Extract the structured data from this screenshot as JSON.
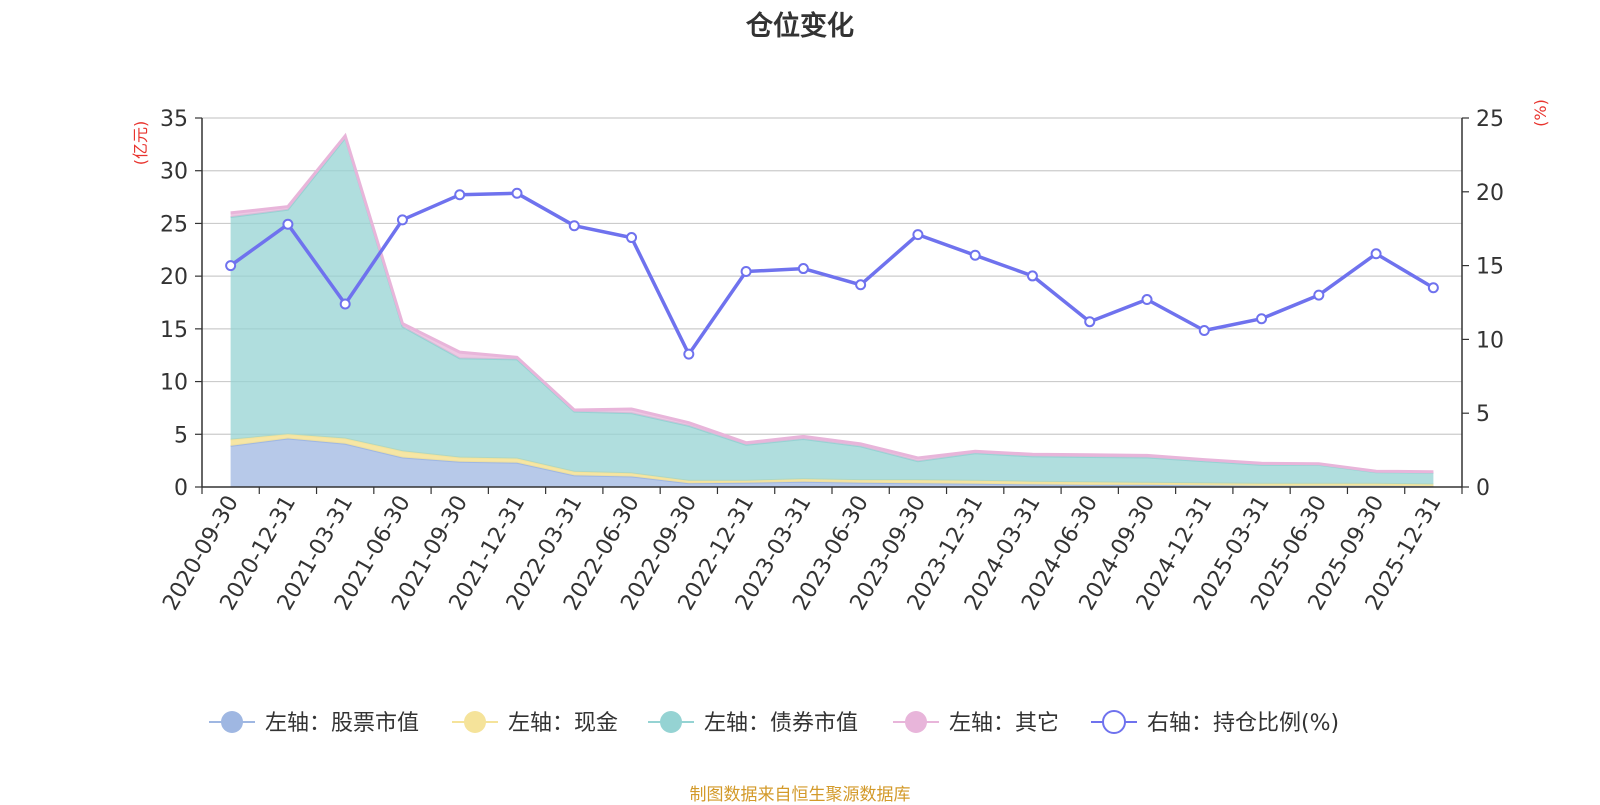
{
  "chart_data": {
    "type": "area",
    "title": "仓位变化",
    "source": "制图数据来自恒生聚源数据库",
    "left_axis_label": "(亿元)",
    "right_axis_label": "(%)",
    "left_ylim": [
      0,
      35
    ],
    "left_ticks": [
      "0",
      "5",
      "10",
      "15",
      "20",
      "25",
      "30",
      "35"
    ],
    "right_ylim": [
      0,
      25
    ],
    "right_ticks": [
      "0",
      "5",
      "10",
      "15",
      "20",
      "25"
    ],
    "grid": true,
    "legend_position": "bottom",
    "categories": [
      "2020-09-30",
      "2020-12-31",
      "2021-03-31",
      "2021-06-30",
      "2021-09-30",
      "2021-12-31",
      "2022-03-31",
      "2022-06-30",
      "2022-09-30",
      "2022-12-31",
      "2023-03-31",
      "2023-06-30",
      "2023-09-30",
      "2023-12-31",
      "2024-03-31",
      "2024-06-30",
      "2024-09-30",
      "2024-12-31",
      "2025-03-31",
      "2025-06-30",
      "2025-09-30",
      "2025-12-31"
    ],
    "series": [
      {
        "name": "左轴：股票市值",
        "axis": "left",
        "kind": "stacked-area",
        "color": "#9fb7e2",
        "values": [
          3.9,
          4.6,
          4.1,
          2.8,
          2.4,
          2.3,
          1.1,
          1.0,
          0.35,
          0.4,
          0.5,
          0.4,
          0.35,
          0.3,
          0.25,
          0.2,
          0.2,
          0.15,
          0.1,
          0.1,
          0.1,
          0.08
        ]
      },
      {
        "name": "左轴：现金",
        "axis": "left",
        "kind": "stacked-area",
        "color": "#f5e39a",
        "values": [
          0.6,
          0.4,
          0.5,
          0.6,
          0.4,
          0.4,
          0.35,
          0.3,
          0.25,
          0.2,
          0.25,
          0.25,
          0.3,
          0.3,
          0.25,
          0.25,
          0.2,
          0.2,
          0.2,
          0.2,
          0.2,
          0.17
        ]
      },
      {
        "name": "左轴：债券市值",
        "axis": "left",
        "kind": "stacked-area",
        "color": "#95d3d3",
        "values": [
          21.1,
          21.3,
          28.5,
          11.8,
          9.4,
          9.4,
          5.7,
          5.7,
          5.2,
          3.4,
          3.8,
          3.2,
          1.8,
          2.6,
          2.4,
          2.4,
          2.4,
          2.1,
          1.8,
          1.8,
          1.1,
          1.1
        ]
      },
      {
        "name": "左轴：其它",
        "axis": "left",
        "kind": "stacked-area",
        "color": "#e8b5da",
        "values": [
          0.4,
          0.3,
          0.2,
          0.3,
          0.6,
          0.2,
          0.15,
          0.4,
          0.3,
          0.2,
          0.25,
          0.25,
          0.3,
          0.2,
          0.2,
          0.2,
          0.2,
          0.15,
          0.15,
          0.1,
          0.1,
          0.1
        ]
      },
      {
        "name": "右轴：持仓比例(%)",
        "axis": "right",
        "kind": "line",
        "color": "#6f72ee",
        "values": [
          15.0,
          17.8,
          12.4,
          18.1,
          19.8,
          19.9,
          17.7,
          16.9,
          9.0,
          14.6,
          14.8,
          13.7,
          17.1,
          15.7,
          14.3,
          11.2,
          12.7,
          10.6,
          11.4,
          13.0,
          15.8,
          13.5
        ]
      }
    ]
  }
}
